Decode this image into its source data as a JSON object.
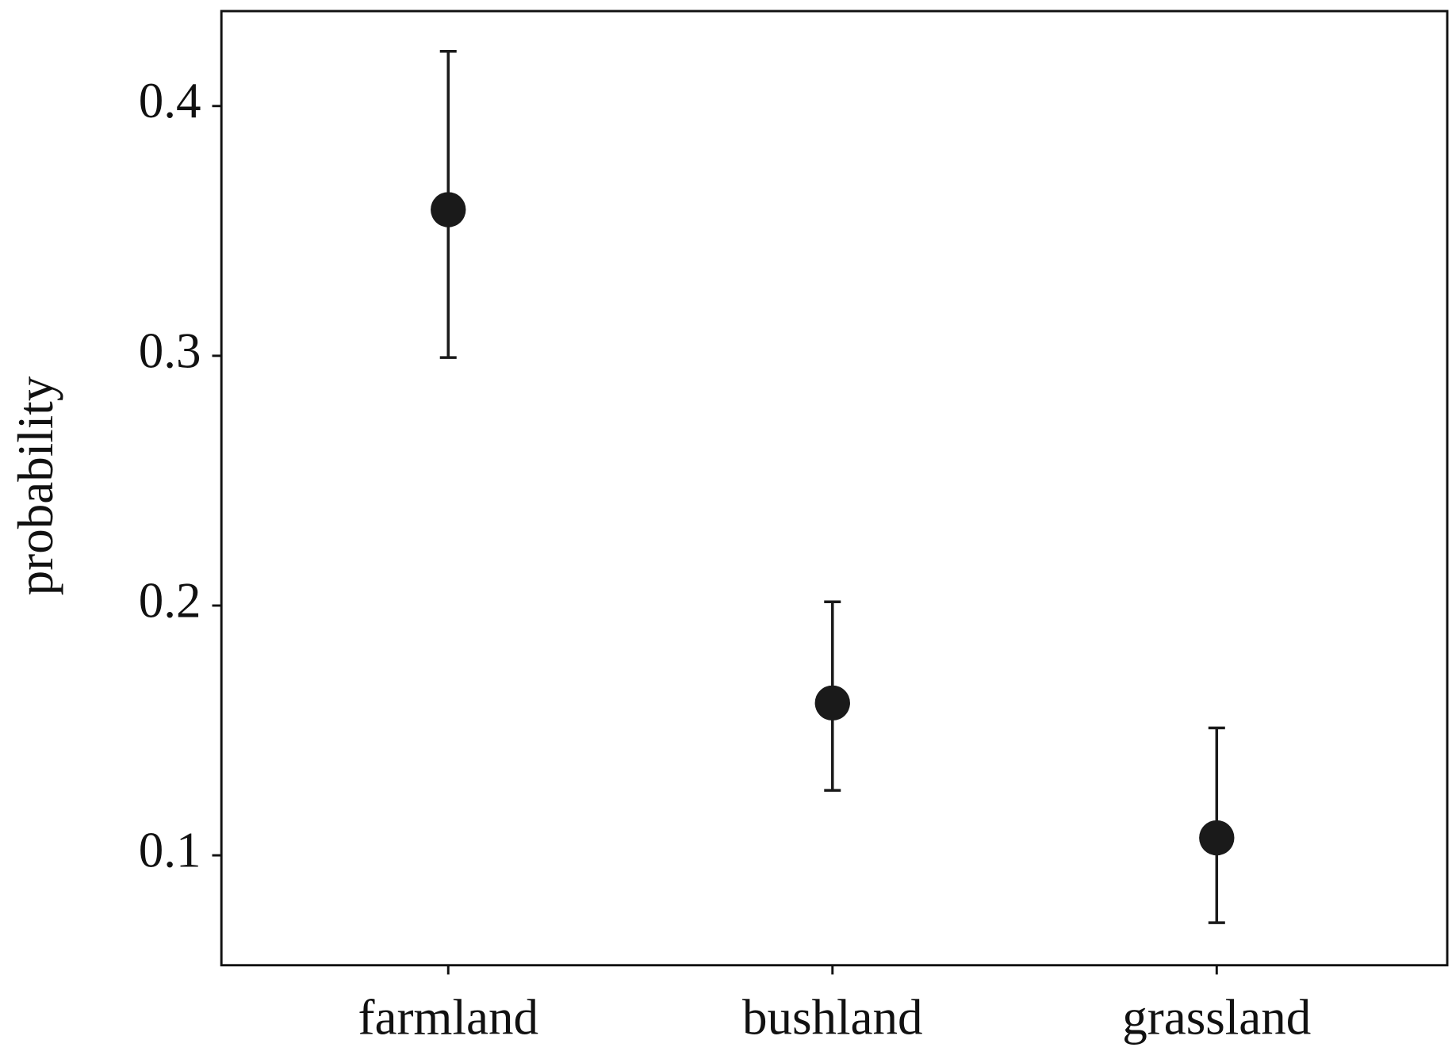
{
  "chart_data": {
    "type": "point",
    "y_label": "probability",
    "categories": [
      "farmland",
      "bushland",
      "grassland"
    ],
    "values": [
      0.3585,
      0.161,
      0.107
    ],
    "lower": [
      0.2993,
      0.126,
      0.073
    ],
    "upper": [
      0.4219,
      0.2015,
      0.151
    ],
    "color": "#1a1a1a",
    "ylim": [
      0.056,
      0.438
    ],
    "yticks": [
      0.1,
      0.2,
      0.3,
      0.4
    ],
    "grid": false
  }
}
